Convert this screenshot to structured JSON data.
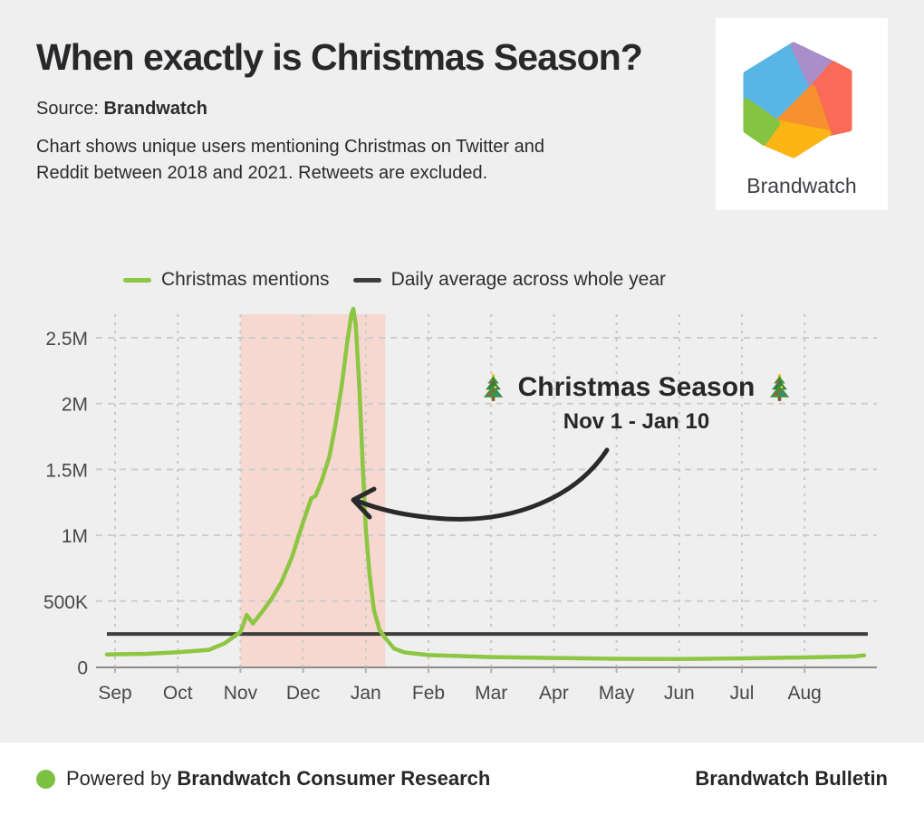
{
  "header": {
    "title": "When exactly is Christmas Season?",
    "source_label": "Source:",
    "source_value": "Brandwatch",
    "description_line1": "Chart shows unique users mentioning Christmas on Twitter and",
    "description_line2": "Reddit between 2018 and 2021. Retweets are excluded."
  },
  "logo": {
    "wordmark": "Brandwatch",
    "segment_colors": {
      "blue": "#58b5e6",
      "purple": "#a98fc9",
      "coral": "#f96a57",
      "orange": "#f7902e",
      "yellow": "#fcb515",
      "green": "#85c441"
    }
  },
  "legend": {
    "items": [
      {
        "label": "Christmas mentions",
        "color": "#8dc642"
      },
      {
        "label": "Daily average across whole year",
        "color": "#3f3f41"
      }
    ]
  },
  "annotation": {
    "title": "Christmas Season",
    "subtitle": "Nov 1 - Jan 10",
    "icon": "christmas-tree"
  },
  "footer": {
    "powered_prefix": "Powered by",
    "powered_brand": "Brandwatch Consumer Research",
    "right_text": "Brandwatch Bulletin",
    "dot_color": "#7cc242"
  },
  "chart_data": {
    "type": "line",
    "title": "",
    "xlabel": "",
    "ylabel": "",
    "x_tick_labels": [
      "Sep",
      "Oct",
      "Nov",
      "Dec",
      "Jan",
      "Feb",
      "Mar",
      "Apr",
      "May",
      "Jun",
      "Jul",
      "Aug"
    ],
    "y_tick_labels": [
      "0",
      "500K",
      "1M",
      "1.5M",
      "2M",
      "2.5M"
    ],
    "y_tick_values": [
      0,
      500000,
      1000000,
      1500000,
      2000000,
      2500000
    ],
    "ylim": [
      0,
      2750000
    ],
    "grid": true,
    "legend_position": "top",
    "highlight_region": {
      "label": "Christmas Season",
      "from": "Nov 1",
      "to": "Jan 10",
      "x_from_month": 2.0,
      "x_to_month": 4.31,
      "color": "#f6d8d1"
    },
    "average_line": {
      "name": "Daily average across whole year",
      "value": 250000,
      "color": "#3f3f41"
    },
    "series": [
      {
        "name": "Christmas mentions",
        "color": "#8dc642",
        "x_unit": "months-after-Sep-1",
        "points": [
          [
            -0.13,
            95000
          ],
          [
            0.5,
            100000
          ],
          [
            1.0,
            112000
          ],
          [
            1.5,
            130000
          ],
          [
            1.75,
            180000
          ],
          [
            2.0,
            265000
          ],
          [
            2.1,
            395000
          ],
          [
            2.2,
            330000
          ],
          [
            2.35,
            420000
          ],
          [
            2.5,
            520000
          ],
          [
            2.65,
            640000
          ],
          [
            2.82,
            830000
          ],
          [
            3.0,
            1100000
          ],
          [
            3.13,
            1280000
          ],
          [
            3.2,
            1300000
          ],
          [
            3.3,
            1420000
          ],
          [
            3.42,
            1600000
          ],
          [
            3.52,
            1850000
          ],
          [
            3.62,
            2150000
          ],
          [
            3.7,
            2450000
          ],
          [
            3.77,
            2680000
          ],
          [
            3.8,
            2720000
          ],
          [
            3.84,
            2600000
          ],
          [
            3.9,
            2100000
          ],
          [
            3.95,
            1550000
          ],
          [
            4.0,
            1050000
          ],
          [
            4.06,
            700000
          ],
          [
            4.13,
            430000
          ],
          [
            4.22,
            280000
          ],
          [
            4.31,
            220000
          ],
          [
            4.45,
            140000
          ],
          [
            4.62,
            110000
          ],
          [
            5.0,
            90000
          ],
          [
            6.0,
            75000
          ],
          [
            7.0,
            68000
          ],
          [
            8.0,
            62000
          ],
          [
            9.0,
            60000
          ],
          [
            10.0,
            65000
          ],
          [
            11.0,
            72000
          ],
          [
            11.8,
            80000
          ],
          [
            11.95,
            88000
          ]
        ]
      }
    ]
  }
}
